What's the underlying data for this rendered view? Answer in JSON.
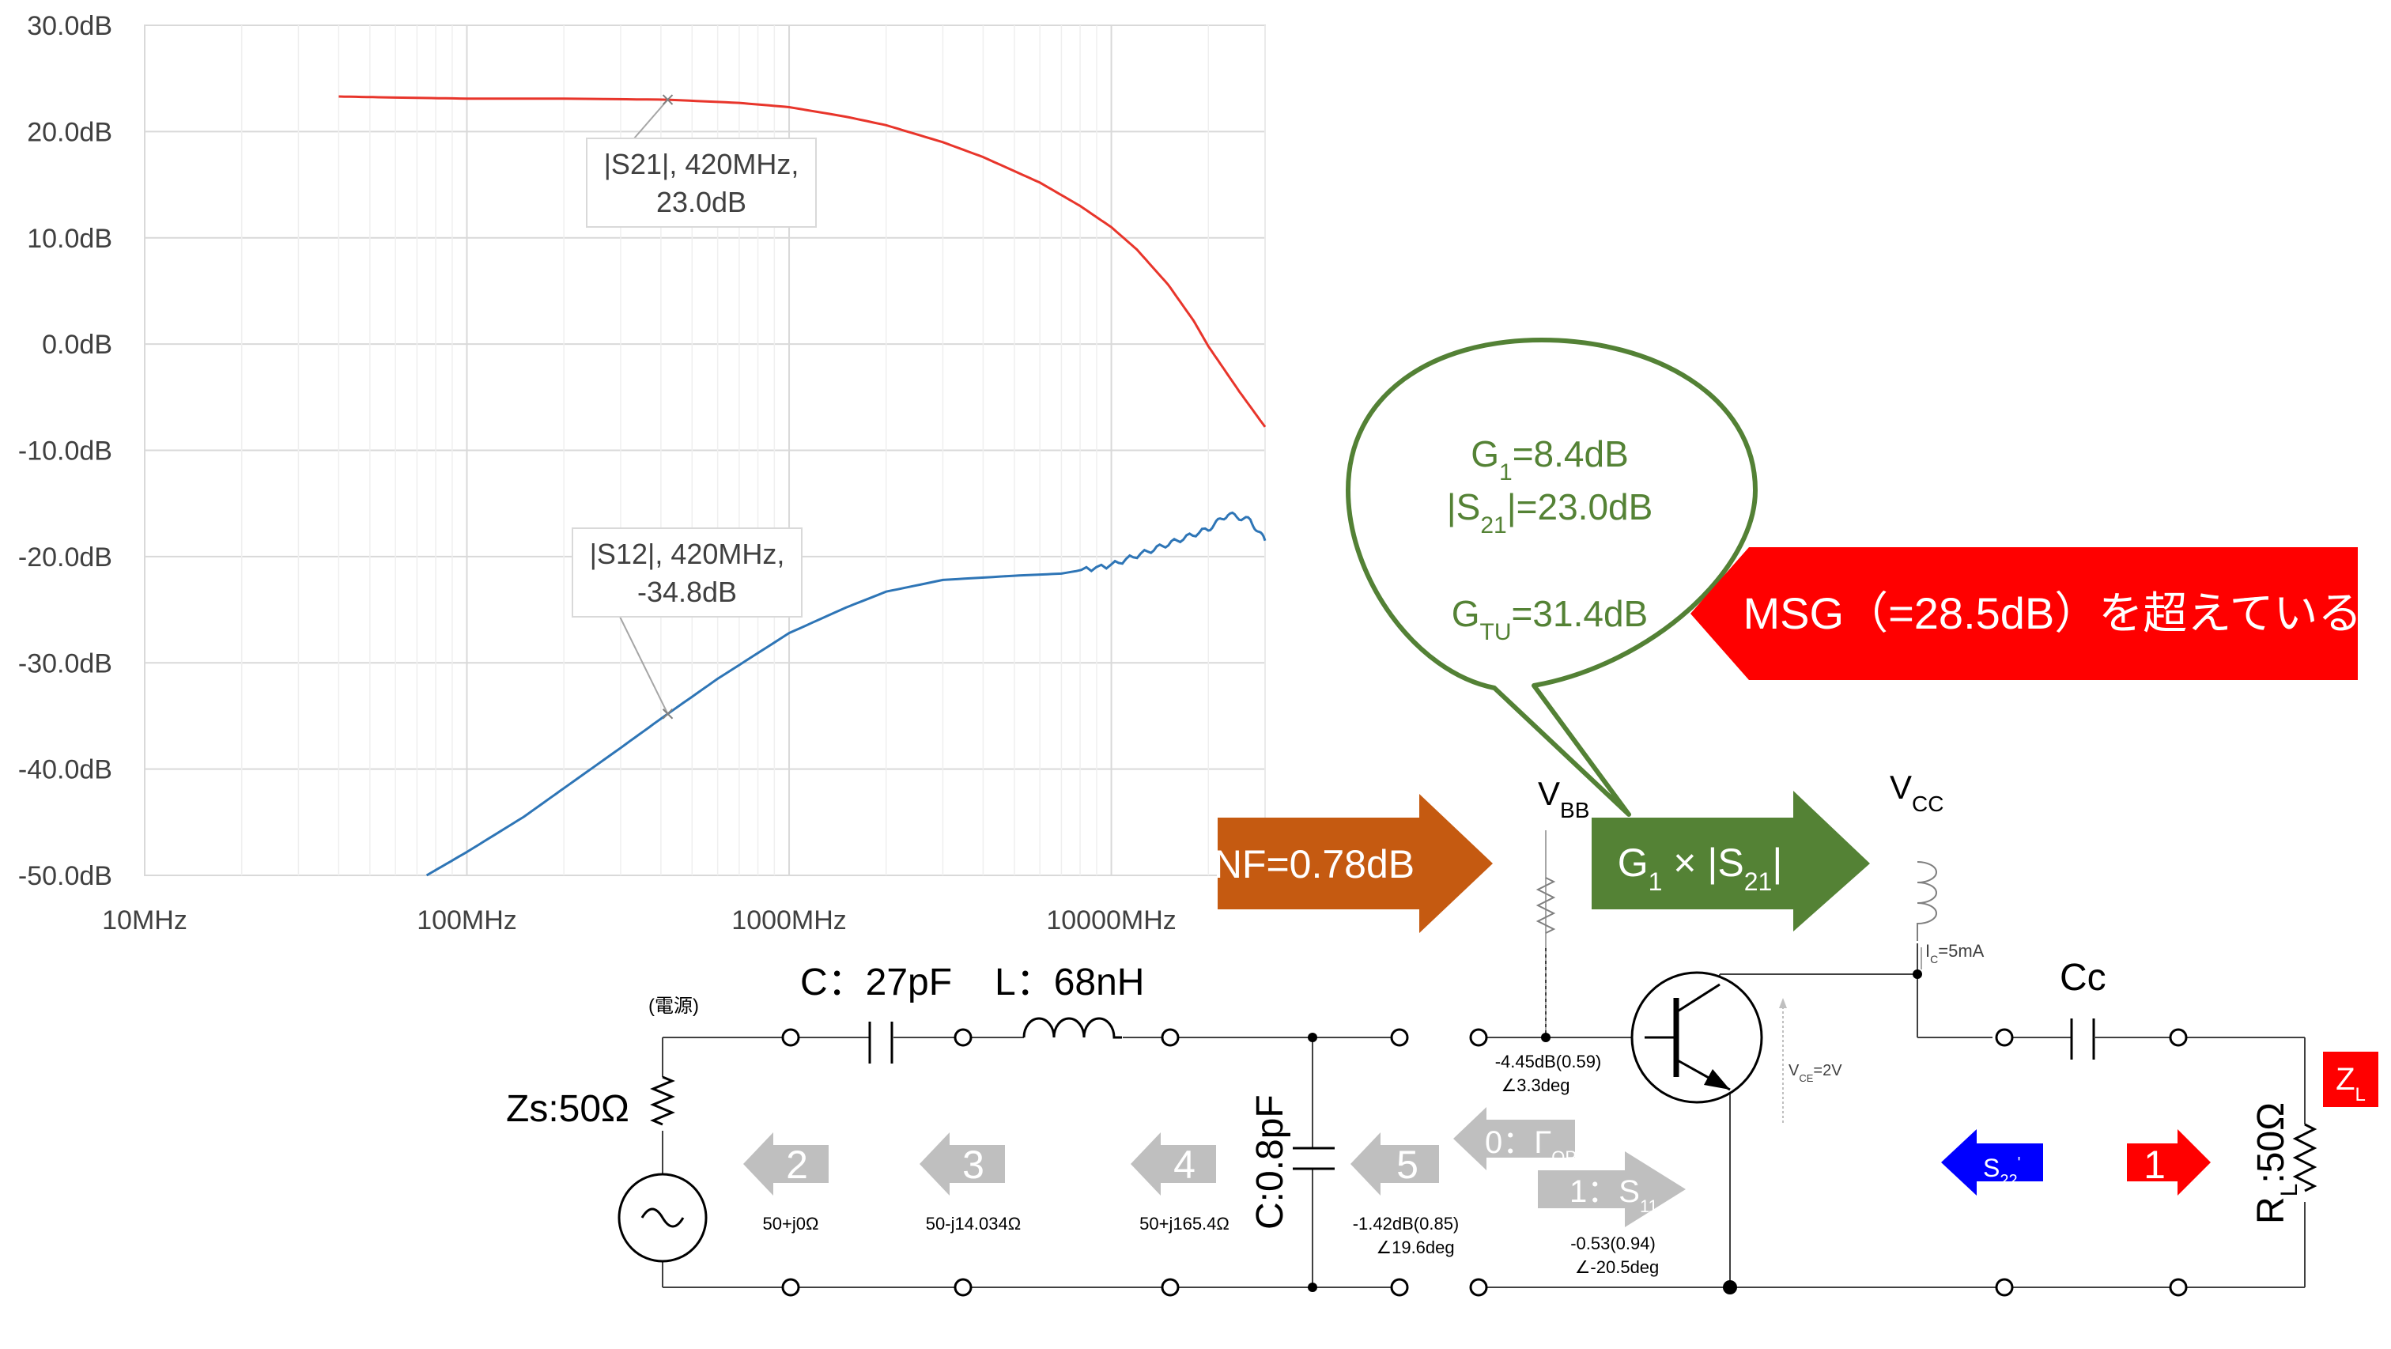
{
  "chart_data": {
    "type": "line",
    "x_scale": "log",
    "xlim_hz": [
      10000000,
      30000000000
    ],
    "ylim": [
      -50,
      30
    ],
    "yticks": [
      "30.0dB",
      "20.0dB",
      "10.0dB",
      "0.0dB",
      "-10.0dB",
      "-20.0dB",
      "-30.0dB",
      "-40.0dB",
      "-50.0dB"
    ],
    "ytick_values": [
      30,
      20,
      10,
      0,
      -10,
      -20,
      -30,
      -40,
      -50
    ],
    "xticks": [
      "10MHz",
      "100MHz",
      "1000MHz",
      "10000MHz"
    ],
    "xtick_values_hz": [
      10000000,
      100000000,
      1000000000,
      10000000000
    ],
    "grid": true,
    "series": [
      {
        "color": "#e8352b",
        "x_hz": [
          40000000,
          60000000,
          100000000,
          200000000,
          420000000,
          700000000,
          1000000000,
          1500000000,
          2000000000,
          3000000000,
          4000000000,
          6000000000,
          8000000000,
          10000000000,
          12000000000,
          15000000000,
          18000000000,
          20000000000,
          25000000000,
          30000000000
        ],
        "y_db": [
          23.3,
          23.2,
          23.1,
          23.1,
          23.0,
          22.7,
          22.3,
          21.4,
          20.6,
          19.0,
          17.6,
          15.2,
          13.0,
          11.0,
          8.9,
          5.6,
          2.2,
          -0.2,
          -4.5,
          -7.8
        ]
      },
      {
        "color": "#2e75b6",
        "x_hz": [
          75000000,
          100000000,
          150000000,
          200000000,
          300000000,
          420000000,
          600000000,
          1000000000,
          1500000000,
          2000000000,
          3000000000,
          5000000000,
          7000000000,
          10000000000,
          13000000000,
          16000000000,
          20000000000,
          23000000000,
          27000000000,
          30000000000
        ],
        "y_db": [
          -50.0,
          -47.8,
          -44.5,
          -41.8,
          -38.0,
          -34.8,
          -31.5,
          -27.2,
          -24.8,
          -23.3,
          -22.2,
          -21.8,
          -21.6,
          -20.8,
          -19.5,
          -18.5,
          -17.4,
          -16.0,
          -16.6,
          -18.5
        ]
      }
    ],
    "annotations": [
      {
        "lines": [
          "|S21|, 420MHz,",
          "23.0dB"
        ],
        "x_hz": 420000000,
        "y_db": 23.0
      },
      {
        "lines": [
          "|S12|, 420MHz,",
          "-34.8dB"
        ],
        "x_hz": 420000000,
        "y_db": -34.8
      }
    ]
  },
  "colors": {
    "green": "#548235",
    "green_dark": "#538135",
    "orange": "#c55a11",
    "red": "#ff0000",
    "blue": "#0000ff",
    "gray_arrow": "#bfbfbf"
  },
  "bubble": {
    "g1_main": "G",
    "g1_sub": "1",
    "g1_rest": "=8.4dB",
    "s21_pre": "|S",
    "s21_sub": "21",
    "s21_rest": "|=23.0dB",
    "gtu_main": "G",
    "gtu_sub": "TU",
    "gtu_rest": "=31.4dB"
  },
  "msg_banner": "MSG（=28.5dB）を超えている",
  "nf_arrow": "NF=0.78dB",
  "gain_arrow": {
    "pre": "G",
    "sub1": "1",
    "mid": " × |S",
    "sub2": "21",
    "post": "|"
  },
  "circuit": {
    "vbb_main": "V",
    "vbb_sub": "BB",
    "vcc_main": "V",
    "vcc_sub": "CC",
    "ic_main": "I",
    "ic_sub": "C",
    "ic_rest": "=5mA",
    "vce_main": "V",
    "vce_sub": "CE",
    "vce_rest": "=2V",
    "source_label": "(電源)",
    "zs": "Zs:50Ω",
    "cap_series": "C：27pF",
    "ind_series": "L：68nH",
    "cap_shunt": "C:0.8pF",
    "cc": "Cc",
    "rl_main": "R",
    "rl_sub": "L",
    "rl_rest": ":50Ω",
    "zl_main": "Z",
    "zl_sub": "L",
    "imp2": "50+j0Ω",
    "imp3": "50-j14.034Ω",
    "imp4": "50+j165.4Ω",
    "gamma_opt_val1": "-4.45dB(0.59)",
    "gamma_opt_val2": "∠3.3deg",
    "node5_val1": "-1.42dB(0.85)",
    "node5_val2": "∠19.6deg",
    "s11_val1": "-0.53(0.94)",
    "s11_val2": "∠-20.5deg",
    "arrow2": "2",
    "arrow3": "3",
    "arrow4": "4",
    "arrow5": "5",
    "arrow0_pre": "0：Γ",
    "arrow0_sub": "OPT",
    "arrow1s_pre": "1：S",
    "arrow1s_sub": "11",
    "s22_pre": "S",
    "s22_sub": "22",
    "s22_sup": "'",
    "arrow1": "1"
  }
}
